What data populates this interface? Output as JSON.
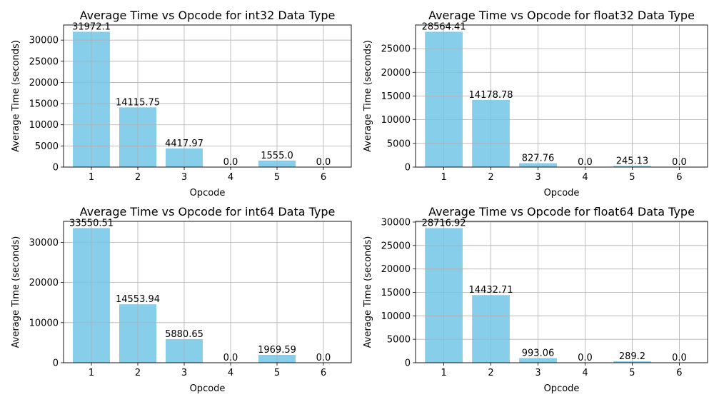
{
  "chart_data": [
    {
      "type": "bar",
      "title": "Average Time vs Opcode for int32 Data Type",
      "xlabel": "Opcode",
      "ylabel": "Average Time (seconds)",
      "categories": [
        "1",
        "2",
        "3",
        "4",
        "5",
        "6"
      ],
      "values": [
        31972.1,
        14115.75,
        4417.97,
        0.0,
        1555.0,
        0.0
      ],
      "value_labels": [
        "31972.1",
        "14115.75",
        "4417.97",
        "0.0",
        "1555.0",
        "0.0"
      ],
      "yticks": [
        0,
        5000,
        10000,
        15000,
        20000,
        25000,
        30000
      ],
      "ylim": [
        0,
        33571
      ],
      "grid": true,
      "color": "#87ceeb"
    },
    {
      "type": "bar",
      "title": "Average Time vs Opcode for float32 Data Type",
      "xlabel": "Opcode",
      "ylabel": "Average Time (seconds)",
      "categories": [
        "1",
        "2",
        "3",
        "4",
        "5",
        "6"
      ],
      "values": [
        28564.41,
        14178.78,
        827.76,
        0.0,
        245.13,
        0.0
      ],
      "value_labels": [
        "28564.41",
        "14178.78",
        "827.76",
        "0.0",
        "245.13",
        "0.0"
      ],
      "yticks": [
        0,
        5000,
        10000,
        15000,
        20000,
        25000
      ],
      "ylim": [
        0,
        29993
      ],
      "grid": true,
      "color": "#87ceeb"
    },
    {
      "type": "bar",
      "title": "Average Time vs Opcode for int64 Data Type",
      "xlabel": "Opcode",
      "ylabel": "Average Time (seconds)",
      "categories": [
        "1",
        "2",
        "3",
        "4",
        "5",
        "6"
      ],
      "values": [
        33550.51,
        14553.94,
        5880.65,
        0.0,
        1969.59,
        0.0
      ],
      "value_labels": [
        "33550.51",
        "14553.94",
        "5880.65",
        "0.0",
        "1969.59",
        "0.0"
      ],
      "yticks": [
        0,
        10000,
        20000,
        30000
      ],
      "ylim": [
        0,
        35228
      ],
      "grid": true,
      "color": "#87ceeb"
    },
    {
      "type": "bar",
      "title": "Average Time vs Opcode for float64 Data Type",
      "xlabel": "Opcode",
      "ylabel": "Average Time (seconds)",
      "categories": [
        "1",
        "2",
        "3",
        "4",
        "5",
        "6"
      ],
      "values": [
        28716.92,
        14432.71,
        993.06,
        0.0,
        289.2,
        0.0
      ],
      "value_labels": [
        "28716.92",
        "14432.71",
        "993.06",
        "0.0",
        "289.2",
        "0.0"
      ],
      "yticks": [
        0,
        5000,
        10000,
        15000,
        20000,
        25000,
        30000
      ],
      "ylim": [
        0,
        30153
      ],
      "grid": true,
      "color": "#87ceeb"
    }
  ]
}
